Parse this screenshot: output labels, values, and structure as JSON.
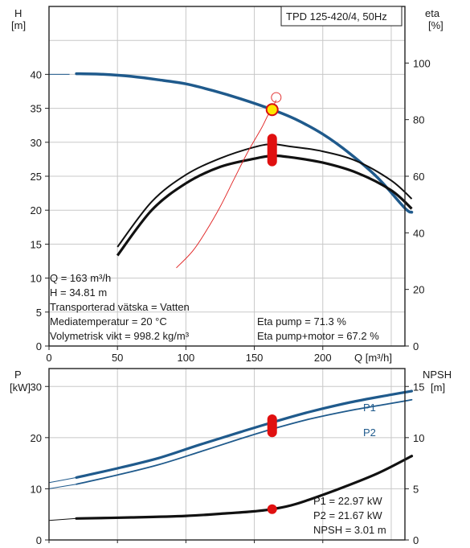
{
  "chart_data": [
    {
      "type": "line",
      "title": "TPD 125-420/4, 50Hz",
      "x_label": "Q [m³/h]",
      "xlim": [
        0,
        260
      ],
      "x_ticks": [
        "0",
        "50",
        "100",
        "150",
        "200"
      ],
      "left_axis": {
        "label_line1": "H",
        "label_line2": "[m]",
        "ylim": [
          0,
          50
        ],
        "ticks": [
          "0",
          "5",
          "10",
          "15",
          "20",
          "25",
          "30",
          "35",
          "40"
        ]
      },
      "right_axis": {
        "label_line1": "eta",
        "label_line2": "[%]",
        "ylim": [
          0,
          120
        ],
        "ticks": [
          "0",
          "20",
          "40",
          "60",
          "80",
          "100"
        ]
      },
      "grid": true,
      "series": [
        {
          "axis": "left",
          "color": "#1f5a8c",
          "points": [
            [
              0,
              40.0
            ],
            [
              20,
              40.1
            ],
            [
              40,
              40.0
            ],
            [
              60,
              39.7
            ],
            [
              80,
              39.2
            ],
            [
              100,
              38.6
            ],
            [
              120,
              37.6
            ],
            [
              140,
              36.4
            ],
            [
              163,
              34.81
            ],
            [
              180,
              33.4
            ],
            [
              200,
              31.2
            ],
            [
              220,
              28.3
            ],
            [
              240,
              24.8
            ],
            [
              260,
              20.3
            ],
            [
              265,
              19.7
            ]
          ]
        },
        {
          "axis": "right",
          "color": "#111111",
          "points": [
            [
              50,
              35.0
            ],
            [
              75,
              51.0
            ],
            [
              100,
              60.5
            ],
            [
              125,
              66.3
            ],
            [
              150,
              70.3
            ],
            [
              163,
              71.3
            ],
            [
              175,
              70.6
            ],
            [
              200,
              68.8
            ],
            [
              225,
              65.3
            ],
            [
              250,
              58.5
            ],
            [
              265,
              52.0
            ]
          ]
        },
        {
          "axis": "right",
          "color": "#111111",
          "points": [
            [
              50,
              32.0
            ],
            [
              75,
              48.0
            ],
            [
              100,
              57.5
            ],
            [
              125,
              63.3
            ],
            [
              150,
              66.2
            ],
            [
              163,
              67.2
            ],
            [
              175,
              66.8
            ],
            [
              200,
              64.8
            ],
            [
              225,
              61.2
            ],
            [
              250,
              55.0
            ],
            [
              265,
              48.5
            ]
          ]
        },
        {
          "axis": "left",
          "color": "#e02020",
          "points": [
            [
              93,
              11.5
            ],
            [
              105,
              14.0
            ],
            [
              115,
              17.0
            ],
            [
              125,
              20.5
            ],
            [
              135,
              24.5
            ],
            [
              145,
              28.5
            ],
            [
              155,
              32.0
            ],
            [
              160,
              34.0
            ],
            [
              163,
              34.81
            ],
            [
              165,
              35.8
            ],
            [
              166,
              36.2
            ]
          ]
        }
      ],
      "operating_point": {
        "q": 163,
        "h": 34.81,
        "eta_pump": 71.3,
        "eta_total": 67.2
      },
      "annotations_left": [
        "Q = 163 m³/h",
        "H = 34.81 m",
        "Transporterad vätska = Vatten",
        "Mediatemperatur = 20 °C",
        "Volymetrisk vikt = 998.2 kg/m³"
      ],
      "annotations_right": [
        "Eta pump = 71.3 %",
        "Eta pump+motor = 67.2 %"
      ]
    },
    {
      "type": "line",
      "left_axis": {
        "label_line1": "P",
        "label_line2": "[kW]",
        "ylim": [
          0,
          33.5
        ],
        "ticks": [
          "0",
          "10",
          "20",
          "30"
        ]
      },
      "right_axis": {
        "label_line1": "NPSH",
        "label_line2": "[m]",
        "ylim": [
          0,
          16.75
        ],
        "ticks": [
          "0",
          "5",
          "10",
          "15"
        ]
      },
      "xlim": [
        0,
        260
      ],
      "grid": true,
      "series": [
        {
          "name": "P1",
          "axis": "left",
          "color": "#1f5a8c",
          "points": [
            [
              0,
              11.2
            ],
            [
              20,
              12.2
            ],
            [
              50,
              14.0
            ],
            [
              80,
              16.0
            ],
            [
              110,
              18.6
            ],
            [
              140,
              21.1
            ],
            [
              163,
              22.97
            ],
            [
              190,
              25.0
            ],
            [
              220,
              26.9
            ],
            [
              250,
              28.4
            ],
            [
              265,
              29.1
            ]
          ]
        },
        {
          "name": "P2",
          "axis": "left",
          "color": "#1f5a8c",
          "points": [
            [
              0,
              10.0
            ],
            [
              20,
              10.9
            ],
            [
              50,
              12.7
            ],
            [
              80,
              14.7
            ],
            [
              110,
              17.2
            ],
            [
              140,
              19.8
            ],
            [
              163,
              21.67
            ],
            [
              190,
              23.6
            ],
            [
              220,
              25.3
            ],
            [
              250,
              26.7
            ],
            [
              265,
              27.4
            ]
          ]
        },
        {
          "name": "NPSH",
          "axis": "right",
          "color": "#111111",
          "points": [
            [
              0,
              1.9
            ],
            [
              20,
              2.1
            ],
            [
              60,
              2.2
            ],
            [
              100,
              2.35
            ],
            [
              130,
              2.6
            ],
            [
              150,
              2.8
            ],
            [
              163,
              3.01
            ],
            [
              180,
              3.5
            ],
            [
              210,
              4.9
            ],
            [
              240,
              6.5
            ],
            [
              265,
              8.2
            ]
          ]
        }
      ],
      "operating_point": {
        "p1": 22.97,
        "p2": 21.67,
        "npsh": 3.01
      },
      "annotations": [
        "P1 = 22.97 kW",
        "P2 = 21.67 kW",
        "NPSH = 3.01 m"
      ]
    }
  ]
}
